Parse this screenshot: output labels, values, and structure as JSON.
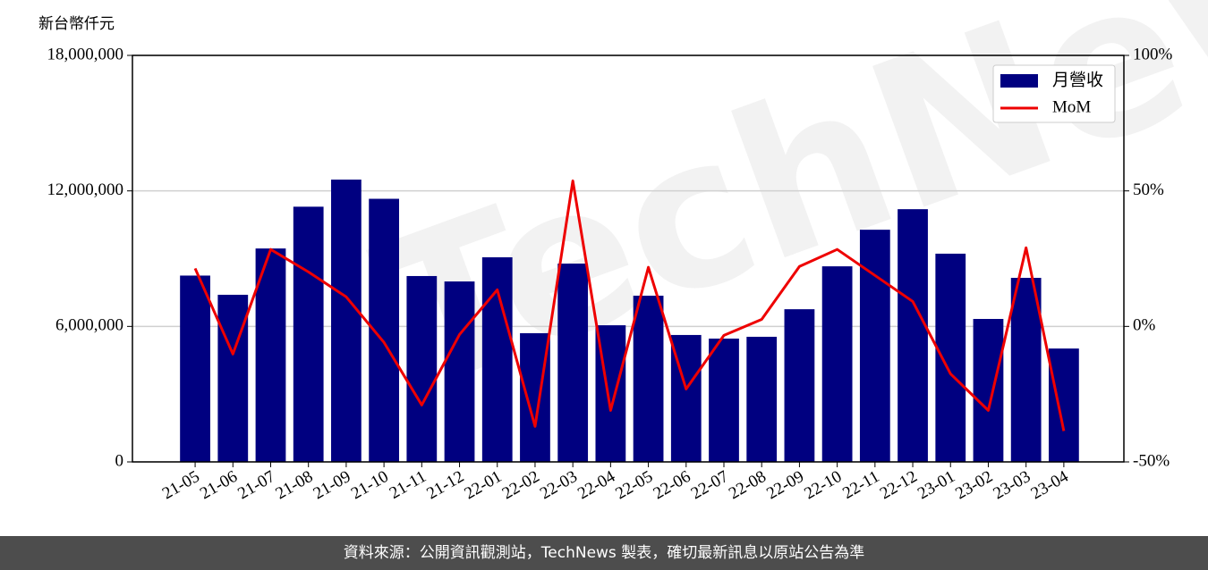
{
  "chart_data": {
    "type": "bar_line",
    "y_label": "新台幣仟元",
    "watermark": "TechNews",
    "footer": "資料來源：公開資訊觀測站，TechNews 製表，確切最新訊息以原站公告為準",
    "categories": [
      "21-05",
      "21-06",
      "21-07",
      "21-08",
      "21-09",
      "21-10",
      "21-11",
      "21-12",
      "22-01",
      "22-02",
      "22-03",
      "22-04",
      "22-05",
      "22-06",
      "22-07",
      "22-08",
      "22-09",
      "22-10",
      "22-11",
      "22-12",
      "23-01",
      "23-02",
      "23-03",
      "23-04"
    ],
    "series": [
      {
        "name": "月營收",
        "type": "bar",
        "color": "#000080",
        "values": [
          8250000,
          7400000,
          9450000,
          11300000,
          12500000,
          11650000,
          8230000,
          7990000,
          9060000,
          5700000,
          8780000,
          6050000,
          7360000,
          5620000,
          5460000,
          5540000,
          6760000,
          8660000,
          10280000,
          11190000,
          9220000,
          6330000,
          8150000,
          5020000
        ]
      },
      {
        "name": "MoM",
        "type": "line",
        "axis": "y2",
        "color": "#ee0000",
        "values": [
          21.4,
          -10.2,
          28.4,
          20.1,
          10.9,
          -5.9,
          -29.0,
          -3.0,
          13.5,
          -36.9,
          53.7,
          -31.0,
          21.8,
          -23.1,
          -3.3,
          2.6,
          22.1,
          28.4,
          18.8,
          9.2,
          -17.5,
          -31.0,
          29.0,
          -38.6
        ]
      }
    ],
    "ylim": [
      0,
      18000000
    ],
    "yticks": [
      0,
      {
        "value": 6000000,
        "label": "6,000,000"
      },
      {
        "value": 12000000,
        "label": "12,000,000"
      },
      {
        "value": 18000000,
        "label": "18,000,000"
      }
    ],
    "y2lim": [
      -50,
      100
    ],
    "y2ticks": [
      {
        "value": -50,
        "label": "-50%"
      },
      {
        "value": 0,
        "label": "0%"
      },
      {
        "value": 50,
        "label": "50%"
      },
      {
        "value": 100,
        "label": "100%"
      }
    ],
    "grid": true,
    "legend": "upper right"
  }
}
